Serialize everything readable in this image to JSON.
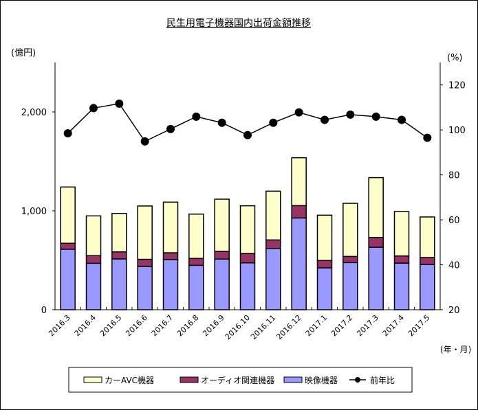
{
  "chart_data": {
    "type": "bar",
    "title": "民生用電子機器国内出荷金額推移",
    "left_axis_label": "(億円)",
    "right_axis_label": "(%)",
    "xlabel": "(年・月)",
    "left_ylim": [
      0,
      2500
    ],
    "left_ticks": [
      0,
      1000,
      2000
    ],
    "left_tick_labels": [
      "0",
      "1,000",
      "2,000"
    ],
    "right_ylim": [
      20,
      130
    ],
    "right_ticks": [
      20,
      40,
      60,
      80,
      100,
      120
    ],
    "right_tick_labels": [
      "20",
      "40",
      "60",
      "80",
      "100",
      "120"
    ],
    "categories": [
      "2016.3",
      "2016.4",
      "2016.5",
      "2016.6",
      "2016.7",
      "2016.8",
      "2016.9",
      "2016.10",
      "2016.11",
      "2016.12",
      "2017.1",
      "2017.2",
      "2017.3",
      "2017.4",
      "2017.5"
    ],
    "series": [
      {
        "name": "映像機器",
        "kind": "stacked-bar",
        "color": "#9999ff",
        "values": [
          612,
          470,
          514,
          438,
          507,
          449,
          512,
          474,
          620,
          928,
          424,
          477,
          632,
          472,
          458
        ]
      },
      {
        "name": "オーディオ関連機器",
        "kind": "stacked-bar",
        "color": "#993366",
        "values": [
          60,
          77,
          71,
          72,
          69,
          70,
          78,
          95,
          86,
          125,
          74,
          62,
          99,
          72,
          70
        ]
      },
      {
        "name": "カーAVC機器",
        "kind": "stacked-bar",
        "color": "#ffffcc",
        "values": [
          569,
          402,
          389,
          539,
          512,
          448,
          528,
          482,
          493,
          484,
          458,
          537,
          605,
          449,
          410
        ]
      },
      {
        "name": "前年比",
        "kind": "line",
        "axis": "right",
        "color": "#000000",
        "values": [
          98.5,
          109.7,
          111.7,
          94.9,
          100.4,
          105.9,
          103.2,
          97.7,
          103.2,
          107.8,
          104.5,
          106.8,
          105.9,
          104.5,
          96.5
        ]
      }
    ],
    "legend": {
      "placement": "bottom",
      "order": [
        "カーAVC機器",
        "オーディオ関連機器",
        "映像機器",
        "前年比"
      ]
    },
    "grid": false
  }
}
